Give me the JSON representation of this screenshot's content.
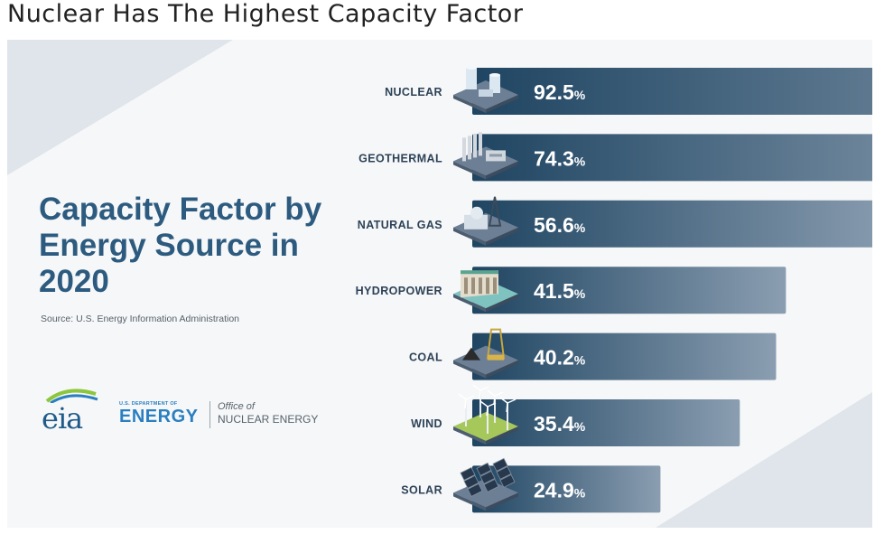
{
  "page": {
    "title": "Nuclear Has The Highest Capacity Factor"
  },
  "infographic": {
    "title": "Capacity Factor by Energy Source in 2020",
    "source": "Source: U.S. Energy Information Administration",
    "logos": {
      "eia": "eia",
      "doe_small": "U.S. DEPARTMENT OF",
      "doe_big": "ENERGY",
      "office_of": "Office of",
      "office_name": "NUCLEAR ENERGY"
    }
  },
  "colors": {
    "bar_start": "#1f4562",
    "bar_end": "#8b9eb1",
    "title_blue": "#2d5b80",
    "accent_blue": "#2a7fc0"
  },
  "chart_data": {
    "type": "bar",
    "orientation": "horizontal",
    "title": "Capacity Factor by Energy Source in 2020",
    "categories": [
      "NUCLEAR",
      "GEOTHERMAL",
      "NATURAL GAS",
      "HYDROPOWER",
      "COAL",
      "WIND",
      "SOLAR"
    ],
    "values": [
      92.5,
      74.3,
      56.6,
      41.5,
      40.2,
      35.4,
      24.9
    ],
    "value_labels": [
      "92.5",
      "74.3",
      "56.6",
      "41.5",
      "40.2",
      "35.4",
      "24.9"
    ],
    "unit": "%",
    "xlim": [
      0,
      100
    ],
    "icons": [
      "nuclear-plant-icon",
      "geothermal-plant-icon",
      "natural-gas-plant-icon",
      "hydropower-dam-icon",
      "coal-mine-icon",
      "wind-turbine-icon",
      "solar-panel-icon"
    ]
  }
}
